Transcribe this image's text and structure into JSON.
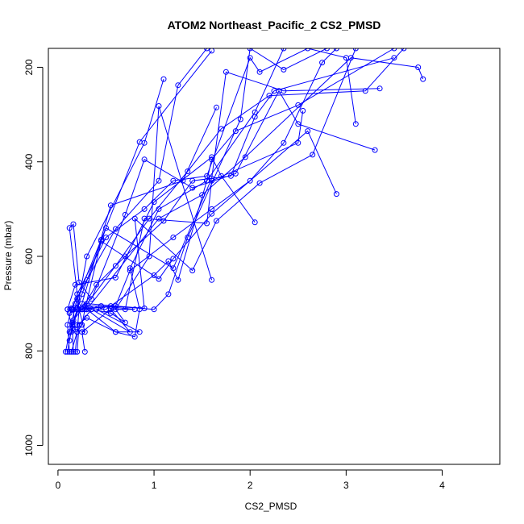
{
  "chart_data": {
    "type": "line",
    "title": "ATOM2 Northeast_Pacific_2 CS2_PMSD",
    "xlabel": "CS2_PMSD",
    "ylabel": "Pressure (mbar)",
    "xlim": [
      -0.1,
      4.6
    ],
    "ylim": [
      1040,
      160
    ],
    "y_inverted": true,
    "x_ticks": [
      0,
      1,
      2,
      3,
      4
    ],
    "x_tick_labels": [
      "0",
      "1",
      "2",
      "3",
      "4"
    ],
    "y_ticks": [
      200,
      400,
      600,
      800,
      1000
    ],
    "y_tick_labels": [
      "200",
      "400",
      "600",
      "800",
      "1000"
    ],
    "grid": false,
    "legend": "none",
    "series_color": "#0000ff",
    "series": [
      {
        "points": [
          [
            0.08,
            802
          ],
          [
            0.12,
            760
          ],
          [
            0.2,
            690
          ],
          [
            0.45,
            565
          ],
          [
            0.85,
            358
          ],
          [
            1.6,
            165
          ]
        ]
      },
      {
        "points": [
          [
            0.1,
            802
          ],
          [
            0.15,
            740
          ],
          [
            0.25,
            700
          ],
          [
            0.55,
            492
          ],
          [
            1.3,
            440
          ],
          [
            1.65,
            285
          ]
        ]
      },
      {
        "points": [
          [
            0.12,
            802
          ],
          [
            0.1,
            745
          ],
          [
            0.14,
            710
          ],
          [
            0.3,
            650
          ],
          [
            0.6,
            542
          ],
          [
            1.05,
            440
          ],
          [
            1.25,
            238
          ],
          [
            1.55,
            160
          ]
        ]
      },
      {
        "points": [
          [
            0.14,
            802
          ],
          [
            0.2,
            760
          ],
          [
            0.22,
            712
          ],
          [
            0.12,
            540
          ],
          [
            0.16,
            532
          ],
          [
            0.22,
            655
          ],
          [
            0.35,
            690
          ],
          [
            0.7,
            512
          ],
          [
            0.9,
            395
          ],
          [
            1.4,
            455
          ],
          [
            1.85,
            425
          ],
          [
            2.3,
            250
          ],
          [
            2.5,
            320
          ],
          [
            3.3,
            375
          ]
        ]
      },
      {
        "points": [
          [
            0.16,
            802
          ],
          [
            0.15,
            752
          ],
          [
            0.1,
            712
          ],
          [
            0.18,
            660
          ],
          [
            0.6,
            645
          ],
          [
            1.0,
            485
          ],
          [
            1.6,
            390
          ],
          [
            1.7,
            430
          ],
          [
            2.05,
            528
          ]
        ]
      },
      {
        "points": [
          [
            0.18,
            802
          ],
          [
            0.2,
            760
          ],
          [
            0.25,
            745
          ],
          [
            0.28,
            712
          ],
          [
            0.45,
            568
          ],
          [
            1.05,
            648
          ],
          [
            1.2,
            605
          ],
          [
            1.6,
            510
          ],
          [
            2.6,
            335
          ],
          [
            2.9,
            468
          ]
        ]
      },
      {
        "points": [
          [
            0.2,
            802
          ],
          [
            0.22,
            745
          ],
          [
            0.35,
            712
          ],
          [
            0.75,
            760
          ],
          [
            0.55,
            712
          ],
          [
            0.8,
            712
          ],
          [
            0.45,
            705
          ],
          [
            0.28,
            705
          ]
        ]
      },
      {
        "points": [
          [
            0.28,
            802
          ],
          [
            0.25,
            760
          ],
          [
            0.55,
            712
          ],
          [
            0.7,
            712
          ],
          [
            0.9,
            520
          ],
          [
            1.55,
            530
          ],
          [
            1.6,
            440
          ],
          [
            2.5,
            360
          ],
          [
            2.55,
            292
          ]
        ]
      },
      {
        "points": [
          [
            0.12,
            778
          ],
          [
            0.15,
            745
          ],
          [
            0.2,
            712
          ],
          [
            0.3,
            600
          ],
          [
            0.9,
            360
          ],
          [
            1.1,
            225
          ]
        ]
      },
      {
        "points": [
          [
            0.14,
            760
          ],
          [
            0.2,
            712
          ],
          [
            0.25,
            680
          ],
          [
            0.5,
            540
          ],
          [
            1.2,
            625
          ],
          [
            1.6,
            435
          ],
          [
            1.75,
            210
          ],
          [
            2.35,
            250
          ],
          [
            3.35,
            245
          ]
        ]
      },
      {
        "points": [
          [
            0.2,
            745
          ],
          [
            0.3,
            730
          ],
          [
            0.6,
            760
          ],
          [
            0.85,
            760
          ],
          [
            0.4,
            712
          ],
          [
            0.5,
            712
          ],
          [
            1.0,
            640
          ],
          [
            1.15,
            610
          ],
          [
            1.25,
            650
          ],
          [
            1.55,
            440
          ],
          [
            2.05,
            295
          ],
          [
            2.35,
            160
          ]
        ]
      },
      {
        "points": [
          [
            0.15,
            712
          ],
          [
            0.2,
            680
          ],
          [
            0.5,
            560
          ],
          [
            0.9,
            500
          ],
          [
            1.2,
            440
          ],
          [
            1.55,
            430
          ],
          [
            2.0,
            180
          ],
          [
            2.1,
            210
          ],
          [
            2.6,
            160
          ],
          [
            3.0,
            180
          ],
          [
            3.1,
            320
          ]
        ]
      },
      {
        "points": [
          [
            0.12,
            720
          ],
          [
            0.25,
            712
          ],
          [
            0.4,
            660
          ],
          [
            0.7,
            600
          ],
          [
            1.1,
            525
          ],
          [
            1.4,
            440
          ],
          [
            1.8,
            430
          ],
          [
            2.05,
            305
          ],
          [
            2.25,
            250
          ],
          [
            3.5,
            180
          ]
        ]
      },
      {
        "points": [
          [
            0.16,
            735
          ],
          [
            0.25,
            712
          ],
          [
            0.6,
            705
          ],
          [
            0.75,
            630
          ],
          [
            1.2,
            560
          ],
          [
            1.6,
            500
          ],
          [
            2.0,
            440
          ],
          [
            2.35,
            360
          ],
          [
            2.75,
            190
          ],
          [
            2.9,
            160
          ]
        ]
      },
      {
        "points": [
          [
            0.22,
            712
          ],
          [
            0.28,
            712
          ],
          [
            0.3,
            700
          ],
          [
            0.9,
            710
          ],
          [
            0.8,
            520
          ],
          [
            1.4,
            630
          ],
          [
            1.65,
            525
          ],
          [
            2.1,
            445
          ],
          [
            2.65,
            385
          ],
          [
            3.1,
            160
          ]
        ]
      },
      {
        "points": [
          [
            0.18,
            700
          ],
          [
            0.22,
            712
          ],
          [
            0.55,
            705
          ],
          [
            1.0,
            712
          ],
          [
            1.15,
            680
          ],
          [
            1.35,
            560
          ],
          [
            1.9,
            310
          ],
          [
            2.0,
            160
          ],
          [
            2.35,
            205
          ],
          [
            2.8,
            160
          ]
        ]
      },
      {
        "points": [
          [
            0.14,
            712
          ],
          [
            0.26,
            712
          ],
          [
            0.6,
            620
          ],
          [
            0.95,
            520
          ],
          [
            1.35,
            420
          ],
          [
            1.7,
            330
          ],
          [
            2.2,
            260
          ],
          [
            3.2,
            250
          ],
          [
            3.6,
            160
          ]
        ]
      },
      {
        "points": [
          [
            0.25,
            712
          ],
          [
            0.3,
            712
          ],
          [
            0.6,
            760
          ],
          [
            0.8,
            770
          ],
          [
            0.85,
            712
          ],
          [
            0.75,
            625
          ],
          [
            1.05,
            500
          ],
          [
            1.55,
            440
          ],
          [
            1.6,
            395
          ],
          [
            1.85,
            335
          ],
          [
            2.5,
            280
          ],
          [
            3.5,
            160
          ]
        ]
      },
      {
        "points": [
          [
            0.2,
            712
          ],
          [
            0.35,
            712
          ],
          [
            0.55,
            720
          ],
          [
            0.7,
            740
          ],
          [
            0.6,
            712
          ],
          [
            0.95,
            600
          ],
          [
            1.05,
            282
          ],
          [
            1.6,
            650
          ]
        ]
      },
      {
        "points": [
          [
            0.1,
            712
          ],
          [
            0.16,
            712
          ],
          [
            0.18,
            755
          ],
          [
            0.28,
            760
          ],
          [
            0.22,
            712
          ],
          [
            0.3,
            712
          ],
          [
            1.05,
            520
          ],
          [
            1.5,
            470
          ],
          [
            1.95,
            390
          ],
          [
            3.05,
            180
          ],
          [
            3.75,
            200
          ],
          [
            3.8,
            225
          ]
        ]
      }
    ]
  }
}
